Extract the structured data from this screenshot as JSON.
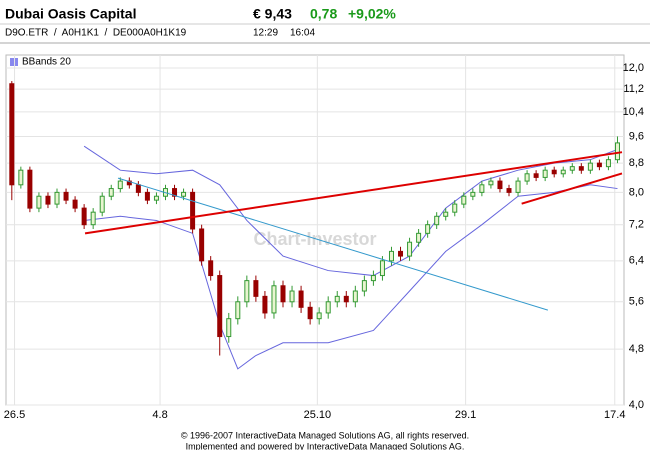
{
  "header": {
    "name": "Dubai Oasis Capital",
    "price": "€ 9,43",
    "change": "0,78",
    "change_pct": "+9,02%",
    "ids": "D9O.ETR  /  A0H1K1  /  DE000A0H1K19",
    "time1": "12:29",
    "time2": "16:04"
  },
  "chart_data": {
    "type": "candlestick",
    "watermark": "Chart-Investor",
    "legend": "BBands 20",
    "log_scale": true,
    "grid": true,
    "up_color": "#339933",
    "down_color": "#990000",
    "open": [
      11.4,
      8.2,
      8.6,
      7.6,
      7.9,
      7.7,
      8.0,
      7.8,
      7.6,
      7.2,
      7.5,
      7.9,
      8.1,
      8.3,
      8.2,
      8.0,
      7.8,
      7.9,
      8.1,
      7.9,
      8.0,
      7.1,
      6.4,
      6.1,
      5.0,
      5.3,
      5.6,
      6.0,
      5.7,
      5.4,
      5.9,
      5.6,
      5.8,
      5.5,
      5.3,
      5.4,
      5.6,
      5.7,
      5.6,
      5.8,
      6.0,
      6.1,
      6.4,
      6.6,
      6.5,
      6.8,
      7.0,
      7.2,
      7.4,
      7.5,
      7.7,
      7.9,
      8.0,
      8.2,
      8.3,
      8.1,
      8.0,
      8.3,
      8.5,
      8.4,
      8.6,
      8.5,
      8.6,
      8.7,
      8.6,
      8.8,
      8.7,
      8.9
    ],
    "high": [
      11.5,
      8.7,
      8.7,
      8.0,
      8.0,
      8.1,
      8.1,
      7.9,
      7.7,
      7.6,
      8.0,
      8.2,
      8.4,
      8.4,
      8.3,
      8.1,
      8.0,
      8.2,
      8.2,
      8.1,
      8.1,
      7.2,
      6.5,
      6.2,
      5.4,
      5.7,
      6.1,
      6.1,
      5.8,
      6.0,
      6.0,
      5.9,
      5.9,
      5.6,
      5.5,
      5.7,
      5.8,
      5.8,
      5.9,
      6.1,
      6.2,
      6.5,
      6.7,
      6.7,
      6.9,
      7.1,
      7.3,
      7.5,
      7.6,
      7.8,
      8.0,
      8.1,
      8.3,
      8.4,
      8.4,
      8.2,
      8.4,
      8.6,
      8.6,
      8.7,
      8.7,
      8.7,
      8.8,
      8.8,
      8.9,
      8.9,
      9.0,
      9.6
    ],
    "low": [
      7.8,
      8.1,
      7.5,
      7.5,
      7.6,
      7.6,
      7.7,
      7.5,
      7.1,
      7.1,
      7.4,
      7.8,
      8.0,
      8.1,
      7.9,
      7.7,
      7.7,
      7.8,
      7.8,
      7.8,
      7.0,
      6.3,
      6.0,
      4.7,
      4.9,
      5.2,
      5.5,
      5.6,
      5.3,
      5.3,
      5.5,
      5.5,
      5.4,
      5.2,
      5.2,
      5.3,
      5.5,
      5.5,
      5.5,
      5.7,
      5.9,
      6.0,
      6.3,
      6.4,
      6.4,
      6.7,
      6.9,
      7.1,
      7.3,
      7.4,
      7.6,
      7.8,
      7.9,
      8.1,
      8.0,
      7.9,
      7.9,
      8.2,
      8.3,
      8.3,
      8.4,
      8.4,
      8.5,
      8.5,
      8.5,
      8.6,
      8.6,
      8.8
    ],
    "close": [
      8.2,
      8.6,
      7.6,
      7.9,
      7.7,
      8.0,
      7.8,
      7.6,
      7.2,
      7.5,
      7.9,
      8.1,
      8.3,
      8.2,
      8.0,
      7.8,
      7.9,
      8.1,
      7.9,
      8.0,
      7.1,
      6.4,
      6.1,
      5.0,
      5.3,
      5.6,
      6.0,
      5.7,
      5.4,
      5.9,
      5.6,
      5.8,
      5.5,
      5.3,
      5.4,
      5.6,
      5.7,
      5.6,
      5.8,
      6.0,
      6.1,
      6.4,
      6.6,
      6.5,
      6.8,
      7.0,
      7.2,
      7.4,
      7.5,
      7.7,
      7.9,
      8.0,
      8.2,
      8.3,
      8.1,
      8.0,
      8.3,
      8.5,
      8.4,
      8.6,
      8.5,
      8.6,
      8.7,
      8.6,
      8.8,
      8.7,
      8.9,
      9.4
    ],
    "series": [
      {
        "name": "BBands 20",
        "color": "#6666dd",
        "x": [
          8,
          12,
          16,
          20,
          23,
          26,
          30,
          35,
          40,
          44,
          48,
          52,
          56,
          60,
          64,
          67
        ],
        "values": [
          9.3,
          8.6,
          8.5,
          8.6,
          8.2,
          7.3,
          6.5,
          6.2,
          6.1,
          6.5,
          7.6,
          8.3,
          8.6,
          8.8,
          8.9,
          9.2
        ]
      },
      {
        "color": "#6666dd",
        "x": [
          8,
          12,
          16,
          20,
          23,
          25,
          27,
          30,
          35,
          40,
          44,
          48,
          52,
          56,
          60,
          64,
          67
        ],
        "values": [
          7.3,
          7.4,
          7.3,
          7.0,
          5.2,
          4.5,
          4.7,
          4.9,
          4.9,
          5.1,
          5.8,
          6.6,
          7.2,
          7.9,
          8.0,
          8.2,
          8.1
        ]
      }
    ],
    "trendlines": [
      {
        "color": "#3399cc",
        "x": [
          11.75,
          59.3
        ],
        "y": [
          8.38,
          5.45
        ]
      },
      {
        "color": "#dd0000",
        "x": [
          8.1,
          67.5
        ],
        "y": [
          7.0,
          9.12
        ]
      },
      {
        "color": "#dd0000",
        "x": [
          56.4,
          67.5
        ],
        "y": [
          7.71,
          8.51
        ]
      }
    ],
    "xlim": [
      -0.2,
      67.5
    ],
    "xticks": [
      {
        "value": 0.3,
        "label": "26.5"
      },
      {
        "value": 16.4,
        "label": "4.8"
      },
      {
        "value": 33.8,
        "label": "25.10"
      },
      {
        "value": 50.2,
        "label": "29.1"
      },
      {
        "value": 66.7,
        "label": "17.4"
      }
    ],
    "ylim": [
      4,
      12
    ],
    "yticks": [
      {
        "value": 4,
        "label": "4,0"
      },
      {
        "value": 4.8,
        "label": "4,8"
      },
      {
        "value": 5.6,
        "label": "5,6"
      },
      {
        "value": 6.4,
        "label": "6,4"
      },
      {
        "value": 7.2,
        "label": "7,2"
      },
      {
        "value": 8,
        "label": "8,0"
      },
      {
        "value": 8.8,
        "label": "8,8"
      },
      {
        "value": 9.6,
        "label": "9,6"
      },
      {
        "value": 10.4,
        "label": "10,4"
      },
      {
        "value": 11.2,
        "label": "11,2"
      },
      {
        "value": 12,
        "label": "12,0"
      }
    ]
  },
  "footer": [
    "© 1996-2007 InteractiveData Managed Solutions  AG, all rights reserved.",
    "Implemented and powered by  InteractiveData Managed Solutions  AG."
  ]
}
